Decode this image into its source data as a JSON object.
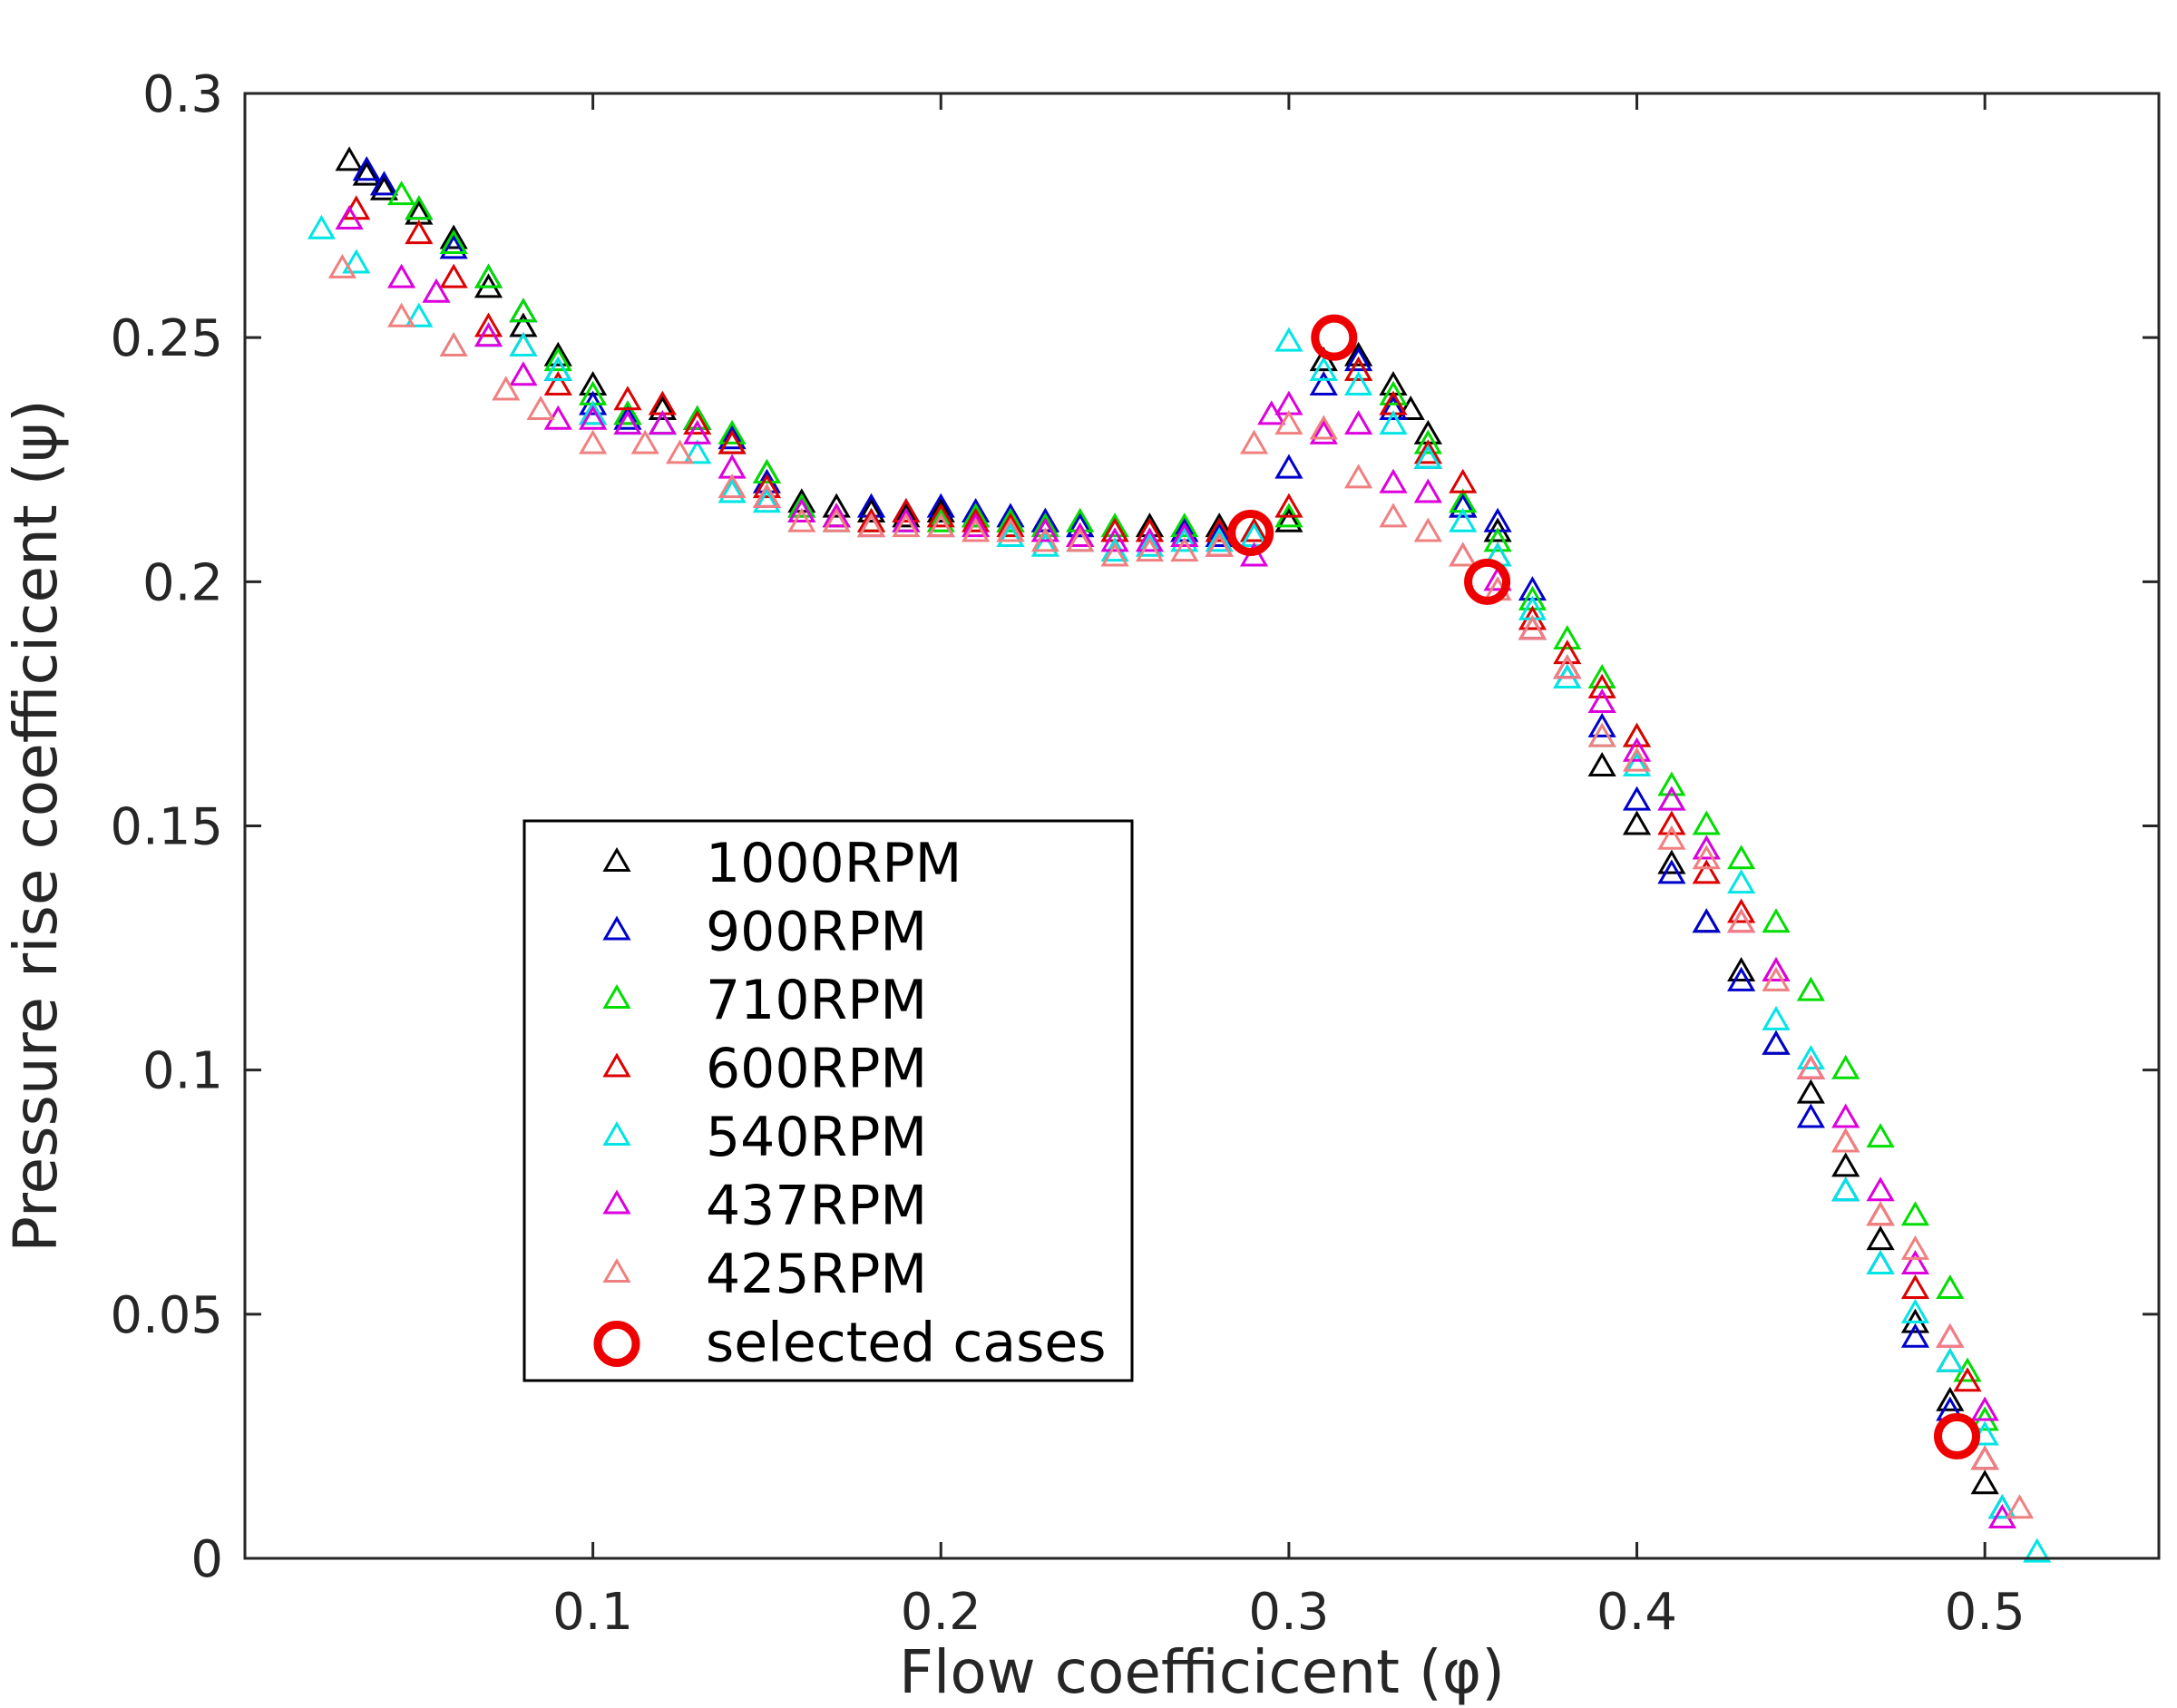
{
  "chart_data": {
    "type": "scatter",
    "xlabel": "Flow coefficicent (φ)",
    "ylabel": "Pressure rise coefficicent (ψ)",
    "xlim": [
      0.0,
      0.55
    ],
    "ylim": [
      0.0,
      0.3
    ],
    "xticks": [
      0.1,
      0.2,
      0.3,
      0.4,
      0.5
    ],
    "xtick_labels": [
      "0.1",
      "0.2",
      "0.3",
      "0.4",
      "0.5"
    ],
    "yticks": [
      0,
      0.05,
      0.1,
      0.15,
      0.2,
      0.25,
      0.3
    ],
    "ytick_labels": [
      "0",
      "0.05",
      "0.1",
      "0.15",
      "0.2",
      "0.25",
      "0.3"
    ],
    "grid": false,
    "legend_position": "center-left",
    "series": [
      {
        "name": "1000RPM",
        "marker": "triangle",
        "color": "#000000",
        "x": [
          0.03,
          0.035,
          0.04,
          0.05,
          0.06,
          0.07,
          0.08,
          0.09,
          0.1,
          0.11,
          0.12,
          0.13,
          0.14,
          0.15,
          0.16,
          0.17,
          0.18,
          0.19,
          0.2,
          0.21,
          0.22,
          0.23,
          0.24,
          0.25,
          0.26,
          0.27,
          0.28,
          0.29,
          0.3,
          0.31,
          0.32,
          0.33,
          0.335,
          0.34,
          0.35,
          0.36,
          0.37,
          0.38,
          0.39,
          0.4,
          0.41,
          0.42,
          0.43,
          0.44,
          0.45,
          0.46,
          0.47,
          0.48,
          0.49,
          0.5
        ],
        "y": [
          0.286,
          0.283,
          0.28,
          0.275,
          0.27,
          0.26,
          0.252,
          0.246,
          0.24,
          0.234,
          0.235,
          0.233,
          0.228,
          0.222,
          0.216,
          0.215,
          0.214,
          0.213,
          0.214,
          0.213,
          0.212,
          0.212,
          0.211,
          0.21,
          0.211,
          0.21,
          0.211,
          0.21,
          0.212,
          0.245,
          0.246,
          0.24,
          0.235,
          0.23,
          0.215,
          0.21,
          0.19,
          0.182,
          0.162,
          0.15,
          0.142,
          0.13,
          0.12,
          0.105,
          0.095,
          0.08,
          0.065,
          0.048,
          0.032,
          0.015
        ]
      },
      {
        "name": "900RPM",
        "marker": "triangle",
        "color": "#0000cc",
        "x": [
          0.035,
          0.04,
          0.05,
          0.06,
          0.07,
          0.08,
          0.09,
          0.1,
          0.11,
          0.12,
          0.13,
          0.14,
          0.15,
          0.16,
          0.17,
          0.18,
          0.19,
          0.2,
          0.21,
          0.22,
          0.23,
          0.24,
          0.25,
          0.26,
          0.27,
          0.28,
          0.29,
          0.3,
          0.31,
          0.32,
          0.33,
          0.34,
          0.35,
          0.36,
          0.37,
          0.38,
          0.39,
          0.4,
          0.41,
          0.42,
          0.43,
          0.44,
          0.45,
          0.46,
          0.47,
          0.48,
          0.49,
          0.5,
          0.505
        ],
        "y": [
          0.284,
          0.281,
          0.276,
          0.268,
          0.262,
          0.255,
          0.243,
          0.236,
          0.233,
          0.232,
          0.233,
          0.229,
          0.22,
          0.215,
          0.213,
          0.215,
          0.214,
          0.215,
          0.214,
          0.213,
          0.212,
          0.211,
          0.21,
          0.21,
          0.21,
          0.209,
          0.21,
          0.223,
          0.24,
          0.245,
          0.235,
          0.225,
          0.215,
          0.212,
          0.198,
          0.18,
          0.17,
          0.155,
          0.14,
          0.13,
          0.118,
          0.105,
          0.09,
          0.075,
          0.06,
          0.045,
          0.03,
          0.02,
          0.01
        ]
      },
      {
        "name": "710RPM",
        "marker": "triangle",
        "color": "#00dd00",
        "x": [
          0.045,
          0.05,
          0.06,
          0.07,
          0.08,
          0.09,
          0.1,
          0.11,
          0.12,
          0.13,
          0.14,
          0.15,
          0.16,
          0.17,
          0.18,
          0.19,
          0.2,
          0.21,
          0.22,
          0.23,
          0.24,
          0.25,
          0.26,
          0.27,
          0.28,
          0.29,
          0.3,
          0.32,
          0.33,
          0.34,
          0.35,
          0.36,
          0.37,
          0.38,
          0.39,
          0.4,
          0.41,
          0.42,
          0.43,
          0.44,
          0.45,
          0.46,
          0.47,
          0.48,
          0.49,
          0.495,
          0.5
        ],
        "y": [
          0.279,
          0.276,
          0.269,
          0.262,
          0.255,
          0.245,
          0.238,
          0.234,
          0.232,
          0.233,
          0.23,
          0.222,
          0.215,
          0.213,
          0.212,
          0.212,
          0.212,
          0.213,
          0.212,
          0.211,
          0.212,
          0.211,
          0.21,
          0.211,
          0.21,
          0.21,
          0.213,
          0.243,
          0.238,
          0.228,
          0.216,
          0.208,
          0.196,
          0.188,
          0.18,
          0.168,
          0.158,
          0.15,
          0.143,
          0.13,
          0.116,
          0.1,
          0.086,
          0.07,
          0.055,
          0.038,
          0.028
        ]
      },
      {
        "name": "600RPM",
        "marker": "triangle",
        "color": "#dd0000",
        "x": [
          0.032,
          0.05,
          0.06,
          0.07,
          0.08,
          0.09,
          0.1,
          0.11,
          0.12,
          0.13,
          0.14,
          0.15,
          0.16,
          0.17,
          0.18,
          0.19,
          0.2,
          0.21,
          0.22,
          0.23,
          0.24,
          0.25,
          0.26,
          0.27,
          0.28,
          0.29,
          0.3,
          0.32,
          0.33,
          0.34,
          0.35,
          0.36,
          0.37,
          0.38,
          0.39,
          0.4,
          0.41,
          0.42,
          0.43,
          0.44,
          0.45,
          0.46,
          0.47,
          0.48,
          0.49,
          0.495,
          0.5
        ],
        "y": [
          0.276,
          0.271,
          0.262,
          0.252,
          0.248,
          0.24,
          0.234,
          0.237,
          0.236,
          0.232,
          0.228,
          0.219,
          0.214,
          0.213,
          0.212,
          0.214,
          0.213,
          0.212,
          0.211,
          0.21,
          0.209,
          0.21,
          0.21,
          0.209,
          0.21,
          0.21,
          0.215,
          0.243,
          0.236,
          0.226,
          0.22,
          0.205,
          0.192,
          0.185,
          0.178,
          0.168,
          0.15,
          0.14,
          0.132,
          0.12,
          0.1,
          0.085,
          0.07,
          0.055,
          0.04,
          0.036,
          0.02
        ]
      },
      {
        "name": "540RPM",
        "marker": "triangle",
        "color": "#00e5e5",
        "x": [
          0.022,
          0.032,
          0.05,
          0.06,
          0.07,
          0.08,
          0.09,
          0.1,
          0.11,
          0.12,
          0.13,
          0.14,
          0.15,
          0.16,
          0.17,
          0.18,
          0.19,
          0.2,
          0.21,
          0.22,
          0.23,
          0.24,
          0.25,
          0.26,
          0.27,
          0.28,
          0.29,
          0.3,
          0.31,
          0.32,
          0.33,
          0.34,
          0.35,
          0.36,
          0.37,
          0.38,
          0.39,
          0.4,
          0.41,
          0.42,
          0.43,
          0.44,
          0.45,
          0.46,
          0.47,
          0.48,
          0.49,
          0.5,
          0.505,
          0.515
        ],
        "y": [
          0.272,
          0.265,
          0.254,
          0.248,
          0.25,
          0.248,
          0.243,
          0.234,
          0.232,
          0.232,
          0.226,
          0.218,
          0.216,
          0.214,
          0.212,
          0.211,
          0.212,
          0.211,
          0.21,
          0.209,
          0.207,
          0.208,
          0.206,
          0.207,
          0.208,
          0.208,
          0.209,
          0.249,
          0.243,
          0.24,
          0.232,
          0.225,
          0.212,
          0.205,
          0.194,
          0.18,
          0.168,
          0.162,
          0.155,
          0.145,
          0.138,
          0.11,
          0.102,
          0.075,
          0.06,
          0.05,
          0.04,
          0.025,
          0.01,
          0.001
        ]
      },
      {
        "name": "437RPM",
        "marker": "triangle",
        "color": "#dd00dd",
        "x": [
          0.03,
          0.045,
          0.055,
          0.07,
          0.08,
          0.09,
          0.1,
          0.11,
          0.12,
          0.13,
          0.14,
          0.15,
          0.16,
          0.17,
          0.18,
          0.19,
          0.2,
          0.21,
          0.22,
          0.23,
          0.24,
          0.25,
          0.26,
          0.27,
          0.28,
          0.29,
          0.295,
          0.3,
          0.31,
          0.32,
          0.33,
          0.34,
          0.35,
          0.36,
          0.37,
          0.38,
          0.39,
          0.4,
          0.41,
          0.42,
          0.43,
          0.44,
          0.45,
          0.46,
          0.47,
          0.48,
          0.49,
          0.5,
          0.505
        ],
        "y": [
          0.274,
          0.262,
          0.259,
          0.25,
          0.242,
          0.233,
          0.233,
          0.232,
          0.232,
          0.23,
          0.223,
          0.217,
          0.214,
          0.213,
          0.211,
          0.212,
          0.211,
          0.211,
          0.21,
          0.21,
          0.209,
          0.208,
          0.208,
          0.209,
          0.207,
          0.205,
          0.234,
          0.236,
          0.23,
          0.232,
          0.22,
          0.218,
          0.205,
          0.2,
          0.19,
          0.182,
          0.175,
          0.165,
          0.155,
          0.145,
          0.13,
          0.12,
          0.1,
          0.09,
          0.075,
          0.06,
          0.045,
          0.03,
          0.008
        ]
      },
      {
        "name": "425RPM",
        "marker": "triangle",
        "color": "#f08080",
        "x": [
          0.028,
          0.045,
          0.06,
          0.075,
          0.085,
          0.1,
          0.115,
          0.125,
          0.14,
          0.15,
          0.16,
          0.17,
          0.18,
          0.19,
          0.2,
          0.21,
          0.22,
          0.23,
          0.24,
          0.25,
          0.26,
          0.27,
          0.28,
          0.29,
          0.3,
          0.31,
          0.32,
          0.33,
          0.34,
          0.35,
          0.36,
          0.37,
          0.38,
          0.39,
          0.4,
          0.41,
          0.42,
          0.43,
          0.44,
          0.45,
          0.46,
          0.47,
          0.48,
          0.49,
          0.5,
          0.51
        ],
        "y": [
          0.264,
          0.254,
          0.248,
          0.239,
          0.235,
          0.228,
          0.228,
          0.226,
          0.219,
          0.217,
          0.212,
          0.212,
          0.211,
          0.211,
          0.211,
          0.21,
          0.21,
          0.208,
          0.208,
          0.205,
          0.206,
          0.206,
          0.207,
          0.228,
          0.232,
          0.231,
          0.221,
          0.213,
          0.21,
          0.205,
          0.198,
          0.19,
          0.182,
          0.168,
          0.163,
          0.147,
          0.143,
          0.13,
          0.118,
          0.1,
          0.085,
          0.07,
          0.063,
          0.045,
          0.02,
          0.01
        ]
      },
      {
        "name": "selected cases",
        "marker": "circle",
        "color": "#ee0000",
        "x": [
          0.289,
          0.313,
          0.357,
          0.492
        ],
        "y": [
          0.21,
          0.25,
          0.2,
          0.025
        ]
      }
    ]
  }
}
